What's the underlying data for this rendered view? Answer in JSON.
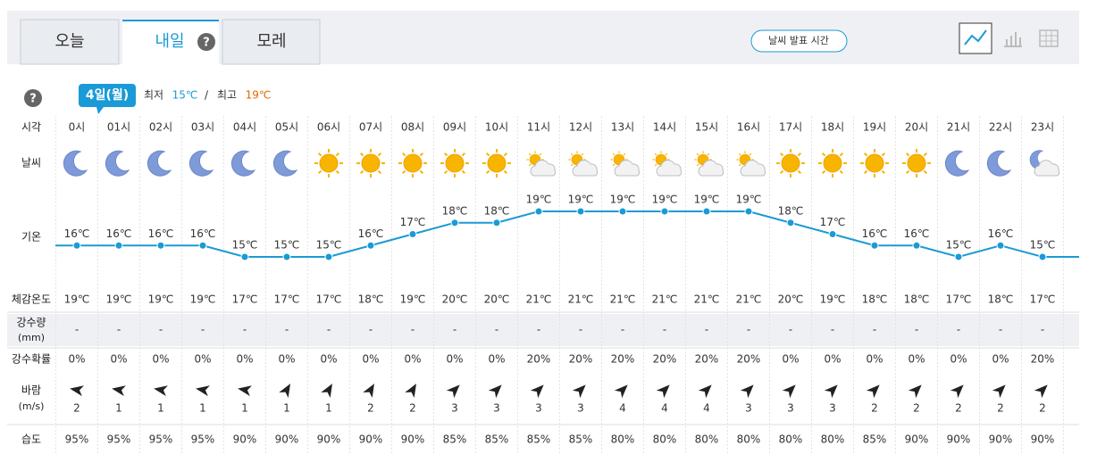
{
  "tabs": [
    "오늘",
    "내일",
    "모레"
  ],
  "help": "?",
  "release_button": "날씨 발표 시간",
  "summary": {
    "date": "4일(월)",
    "min_label": "최저",
    "min": "15℃",
    "sep": "/",
    "max_label": "최고",
    "max": "19℃"
  },
  "row_labels": {
    "time": "시각",
    "sky": "날씨",
    "temp": "기온",
    "feels": "체감온도",
    "rain": "강수량",
    "rain_unit": "(mm)",
    "prob": "강수확률",
    "wind": "바람",
    "wind_unit": "(m/s)",
    "humidity": "습도"
  },
  "hours": [
    "0시",
    "01시",
    "02시",
    "03시",
    "04시",
    "05시",
    "06시",
    "07시",
    "08시",
    "09시",
    "10시",
    "11시",
    "12시",
    "13시",
    "14시",
    "15시",
    "16시",
    "17시",
    "18시",
    "19시",
    "20시",
    "21시",
    "22시",
    "23시"
  ],
  "sky": [
    "moon",
    "moon",
    "moon",
    "moon",
    "moon",
    "moon",
    "sun",
    "sun",
    "sun",
    "sun",
    "sun",
    "partly-cloudy",
    "partly-cloudy",
    "partly-cloudy",
    "partly-cloudy",
    "partly-cloudy",
    "partly-cloudy",
    "sun",
    "sun",
    "sun",
    "sun",
    "moon",
    "moon",
    "night-cloudy"
  ],
  "temps": [
    16,
    16,
    16,
    16,
    15,
    15,
    15,
    16,
    17,
    18,
    18,
    19,
    19,
    19,
    19,
    19,
    19,
    18,
    17,
    16,
    16,
    15,
    16,
    15
  ],
  "temp_labels": [
    "16℃",
    "16℃",
    "16℃",
    "16℃",
    "15℃",
    "15℃",
    "15℃",
    "16℃",
    "17℃",
    "18℃",
    "18℃",
    "19℃",
    "19℃",
    "19℃",
    "19℃",
    "19℃",
    "19℃",
    "18℃",
    "17℃",
    "16℃",
    "16℃",
    "15℃",
    "16℃",
    "15℃"
  ],
  "feels": [
    "19℃",
    "19℃",
    "19℃",
    "19℃",
    "17℃",
    "17℃",
    "17℃",
    "18℃",
    "19℃",
    "20℃",
    "20℃",
    "21℃",
    "21℃",
    "21℃",
    "21℃",
    "21℃",
    "21℃",
    "20℃",
    "19℃",
    "18℃",
    "18℃",
    "17℃",
    "18℃",
    "17℃"
  ],
  "rain": [
    "-",
    "-",
    "-",
    "-",
    "-",
    "-",
    "-",
    "-",
    "-",
    "-",
    "-",
    "-",
    "-",
    "-",
    "-",
    "-",
    "-",
    "-",
    "-",
    "-",
    "-",
    "-",
    "-",
    "-"
  ],
  "prob": [
    "0%",
    "0%",
    "0%",
    "0%",
    "0%",
    "0%",
    "0%",
    "0%",
    "0%",
    "0%",
    "0%",
    "20%",
    "20%",
    "20%",
    "20%",
    "20%",
    "20%",
    "0%",
    "0%",
    "0%",
    "0%",
    "0%",
    "0%",
    "20%"
  ],
  "wind_deg": [
    190,
    190,
    190,
    190,
    190,
    -60,
    -60,
    -60,
    -60,
    -45,
    -45,
    -45,
    -45,
    -45,
    -45,
    -45,
    -45,
    -45,
    -45,
    -45,
    -45,
    -45,
    -45,
    -45
  ],
  "wind_speed": [
    2,
    1,
    1,
    1,
    1,
    1,
    1,
    2,
    2,
    3,
    3,
    3,
    3,
    4,
    4,
    4,
    3,
    3,
    3,
    2,
    2,
    2,
    2,
    2
  ],
  "humidity": [
    "95%",
    "95%",
    "95%",
    "95%",
    "90%",
    "90%",
    "90%",
    "90%",
    "90%",
    "85%",
    "85%",
    "85%",
    "85%",
    "80%",
    "80%",
    "80%",
    "80%",
    "80%",
    "80%",
    "85%",
    "90%",
    "90%",
    "90%",
    "90%"
  ]
}
